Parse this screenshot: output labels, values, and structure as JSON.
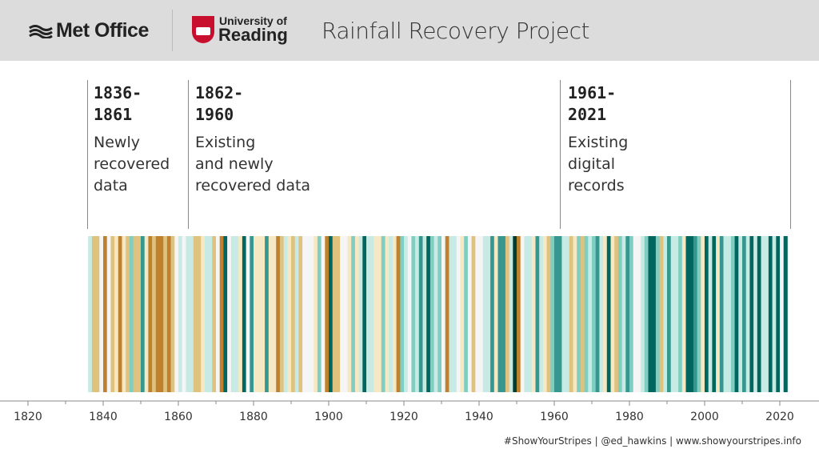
{
  "header": {
    "met_office": "Met Office",
    "university_small": "University of",
    "university_big": "Reading",
    "title": "Rainfall Recovery Project"
  },
  "annotations": [
    {
      "years": "1836-\n1861",
      "text": "Newly\nrecovered\ndata"
    },
    {
      "years": "1862-\n1960",
      "text": "Existing\nand newly\nrecovered data"
    },
    {
      "years": "1961-\n2021",
      "text": "Existing\ndigital\nrecords"
    }
  ],
  "footer": "#ShowYourStripes | @ed_hawkins | www.showyourstripes.info",
  "chart_data": {
    "type": "heatmap",
    "description_encoding": "brown = drier, green = wetter",
    "x_start": 1836,
    "x_end": 2021,
    "xlim": [
      1817,
      2027
    ],
    "x_ticks": [
      1820,
      1840,
      1860,
      1880,
      1900,
      1920,
      1940,
      1960,
      1980,
      2000,
      2020
    ],
    "colors": [
      "#543005",
      "#8c510a",
      "#bf812d",
      "#dfc27d",
      "#f6e8c3",
      "#f5f5f5",
      "#c7eae5",
      "#80cdc1",
      "#35978f",
      "#01665e",
      "#003c30"
    ],
    "values": [
      0.5,
      -2,
      -1.5,
      0,
      -3,
      0.3,
      -2,
      -1,
      -3,
      -0.5,
      -1.5,
      1.5,
      -1.5,
      -2,
      3,
      -1,
      -2.5,
      -2,
      -3,
      -2.5,
      -2,
      -3,
      -2,
      0.3,
      0.5,
      0.4,
      0.6,
      0.5,
      -1.5,
      -2,
      -0.5,
      1,
      1.2,
      -2,
      -0.3,
      -2.5,
      3.5,
      -0.3,
      1,
      0.5,
      -0.8,
      3.5,
      0.3,
      2.5,
      -0.5,
      -0.5,
      -0.5,
      3,
      -0.5,
      -0.6,
      -3,
      -1.5,
      1,
      -0.5,
      -1.5,
      0.8,
      -1.5,
      -0.4,
      0.3,
      -0.4,
      -0.6,
      1.5,
      -0.3,
      -3,
      4,
      -2,
      -2,
      0.2,
      -0.3,
      -0.8,
      1.5,
      -0.5,
      1.2,
      3.5,
      0.5,
      0.8,
      -0.5,
      -0.5,
      1.5,
      -0.8,
      1,
      -0.5,
      -2.5,
      1.5,
      1,
      0.2,
      1.5,
      0.5,
      3,
      1.2,
      3.5,
      1.5,
      1,
      1.5,
      0.4,
      -3,
      0.5,
      1.2,
      0.4,
      -0.5,
      1.5,
      -0.3,
      -2,
      0.1,
      -0.3,
      1,
      0.8,
      2.5,
      -0.8,
      2.5,
      2.5,
      -1.5,
      0.8,
      4.5,
      -2.5,
      0.4,
      0.5,
      1.2,
      -0.5,
      2.5,
      0.5,
      -0.8,
      -2,
      1.5,
      2.5,
      2.5,
      0.5,
      1,
      -1.5,
      -1.2,
      2,
      -2,
      1.5,
      0.5,
      1.8,
      2.5,
      0.5,
      -0.5,
      3.5,
      -0.5,
      -2,
      1.5,
      0.5,
      2.5,
      2,
      0.4,
      0.3,
      1,
      2,
      3.5,
      4,
      1.5,
      -2,
      1,
      2.5,
      0.5,
      1,
      1.5,
      -0.5,
      4,
      4,
      3,
      1.5,
      -1.2,
      4,
      1,
      3.5,
      -0.5,
      2.5,
      1,
      0.5,
      2,
      3.5,
      0.5,
      3,
      1,
      4,
      0.5,
      3.5,
      1,
      0.5,
      3.5,
      0.6,
      4,
      0.3,
      4
    ]
  }
}
